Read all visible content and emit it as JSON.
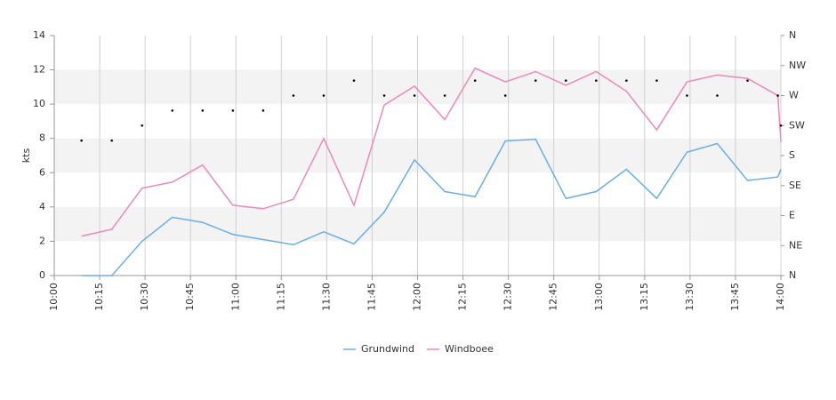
{
  "chart_data": {
    "type": "line",
    "y_label": "kts",
    "x": [
      "10:09",
      "10:19",
      "10:29",
      "10:39",
      "10:49",
      "10:59",
      "11:09",
      "11:19",
      "11:29",
      "11:39",
      "11:49",
      "11:59",
      "12:09",
      "12:19",
      "12:29",
      "12:39",
      "12:49",
      "12:59",
      "13:09",
      "13:19",
      "13:29",
      "13:39",
      "13:49",
      "13:59",
      "14:00"
    ],
    "series": [
      {
        "name": "Grundwind",
        "color": "#6aaee8",
        "values": [
          0,
          0,
          2.0,
          3.4,
          3.1,
          2.4,
          2.1,
          1.8,
          2.55,
          1.85,
          3.7,
          6.75,
          4.9,
          4.6,
          7.85,
          7.95,
          4.5,
          4.9,
          6.2,
          4.5,
          7.2,
          7.7,
          5.55,
          5.75,
          6.2
        ]
      },
      {
        "name": "Windboee",
        "color": "#ee88b8",
        "values": [
          2.3,
          2.7,
          5.1,
          5.45,
          6.45,
          4.1,
          3.9,
          4.45,
          8.0,
          4.1,
          9.95,
          11.05,
          9.1,
          12.1,
          11.3,
          11.9,
          11.1,
          11.9,
          10.75,
          8.5,
          11.3,
          11.7,
          11.5,
          10.5,
          7.8
        ]
      }
    ],
    "direction": {
      "color": "#000000",
      "axis": "y2",
      "values": [
        202.5,
        202.5,
        225,
        247.5,
        247.5,
        247.5,
        247.5,
        270,
        270,
        292.5,
        270,
        270,
        270,
        292.5,
        270,
        292.5,
        292.5,
        292.5,
        292.5,
        292.5,
        270,
        270,
        292.5,
        270,
        225
      ]
    },
    "xlim": [
      "10:00",
      "14:00"
    ],
    "xticks": [
      "10:00",
      "10:15",
      "10:30",
      "10:45",
      "11:00",
      "11:15",
      "11:30",
      "11:45",
      "12:00",
      "12:15",
      "12:30",
      "12:45",
      "13:00",
      "13:15",
      "13:30",
      "13:45",
      "14:00"
    ],
    "ylim": [
      0,
      14
    ],
    "yticks": [
      0,
      2,
      4,
      6,
      8,
      10,
      12,
      14
    ],
    "y2lim": [
      0,
      360
    ],
    "y2ticks": [
      {
        "value": 0,
        "label": "N"
      },
      {
        "value": 45,
        "label": "NE"
      },
      {
        "value": 90,
        "label": "E"
      },
      {
        "value": 135,
        "label": "SE"
      },
      {
        "value": 180,
        "label": "S"
      },
      {
        "value": 225,
        "label": "SW"
      },
      {
        "value": 270,
        "label": "W"
      },
      {
        "value": 315,
        "label": "NW"
      },
      {
        "value": 360,
        "label": "N"
      }
    ],
    "grid": true,
    "legend": "bottom"
  }
}
